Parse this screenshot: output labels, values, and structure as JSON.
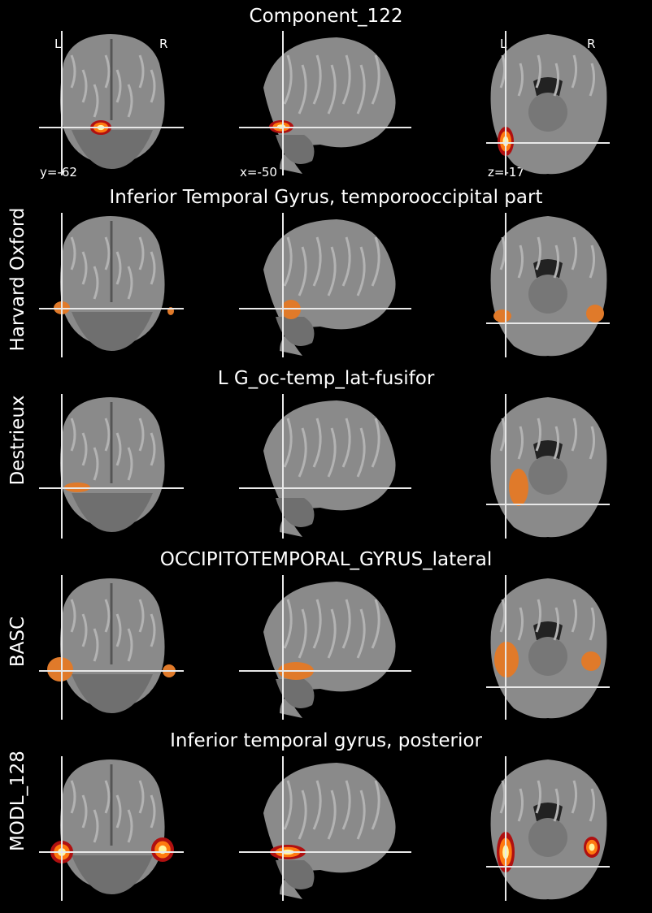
{
  "component_title": "Component_122",
  "orientation": {
    "left": "L",
    "right": "R"
  },
  "coords": {
    "y": "y=-62",
    "x": "x=-50",
    "z": "z=-17"
  },
  "rows": [
    {
      "atlas_label": "",
      "region": ""
    },
    {
      "atlas_label": "Harvard Oxford",
      "region": "Inferior Temporal Gyrus, temporooccipital part"
    },
    {
      "atlas_label": "Destrieux",
      "region": "L G_oc-temp_lat-fusifor"
    },
    {
      "atlas_label": "BASC",
      "region": "OCCIPITOTEMPORAL_GYRUS_lateral"
    },
    {
      "atlas_label": "MODL_128",
      "region": "Inferior temporal gyrus, posterior"
    }
  ],
  "colors": {
    "background": "#000000",
    "overlay_orange": "#e07a2a",
    "overlay_hot_core": "#fff6a0",
    "crosshair": "#e8e8e8"
  }
}
